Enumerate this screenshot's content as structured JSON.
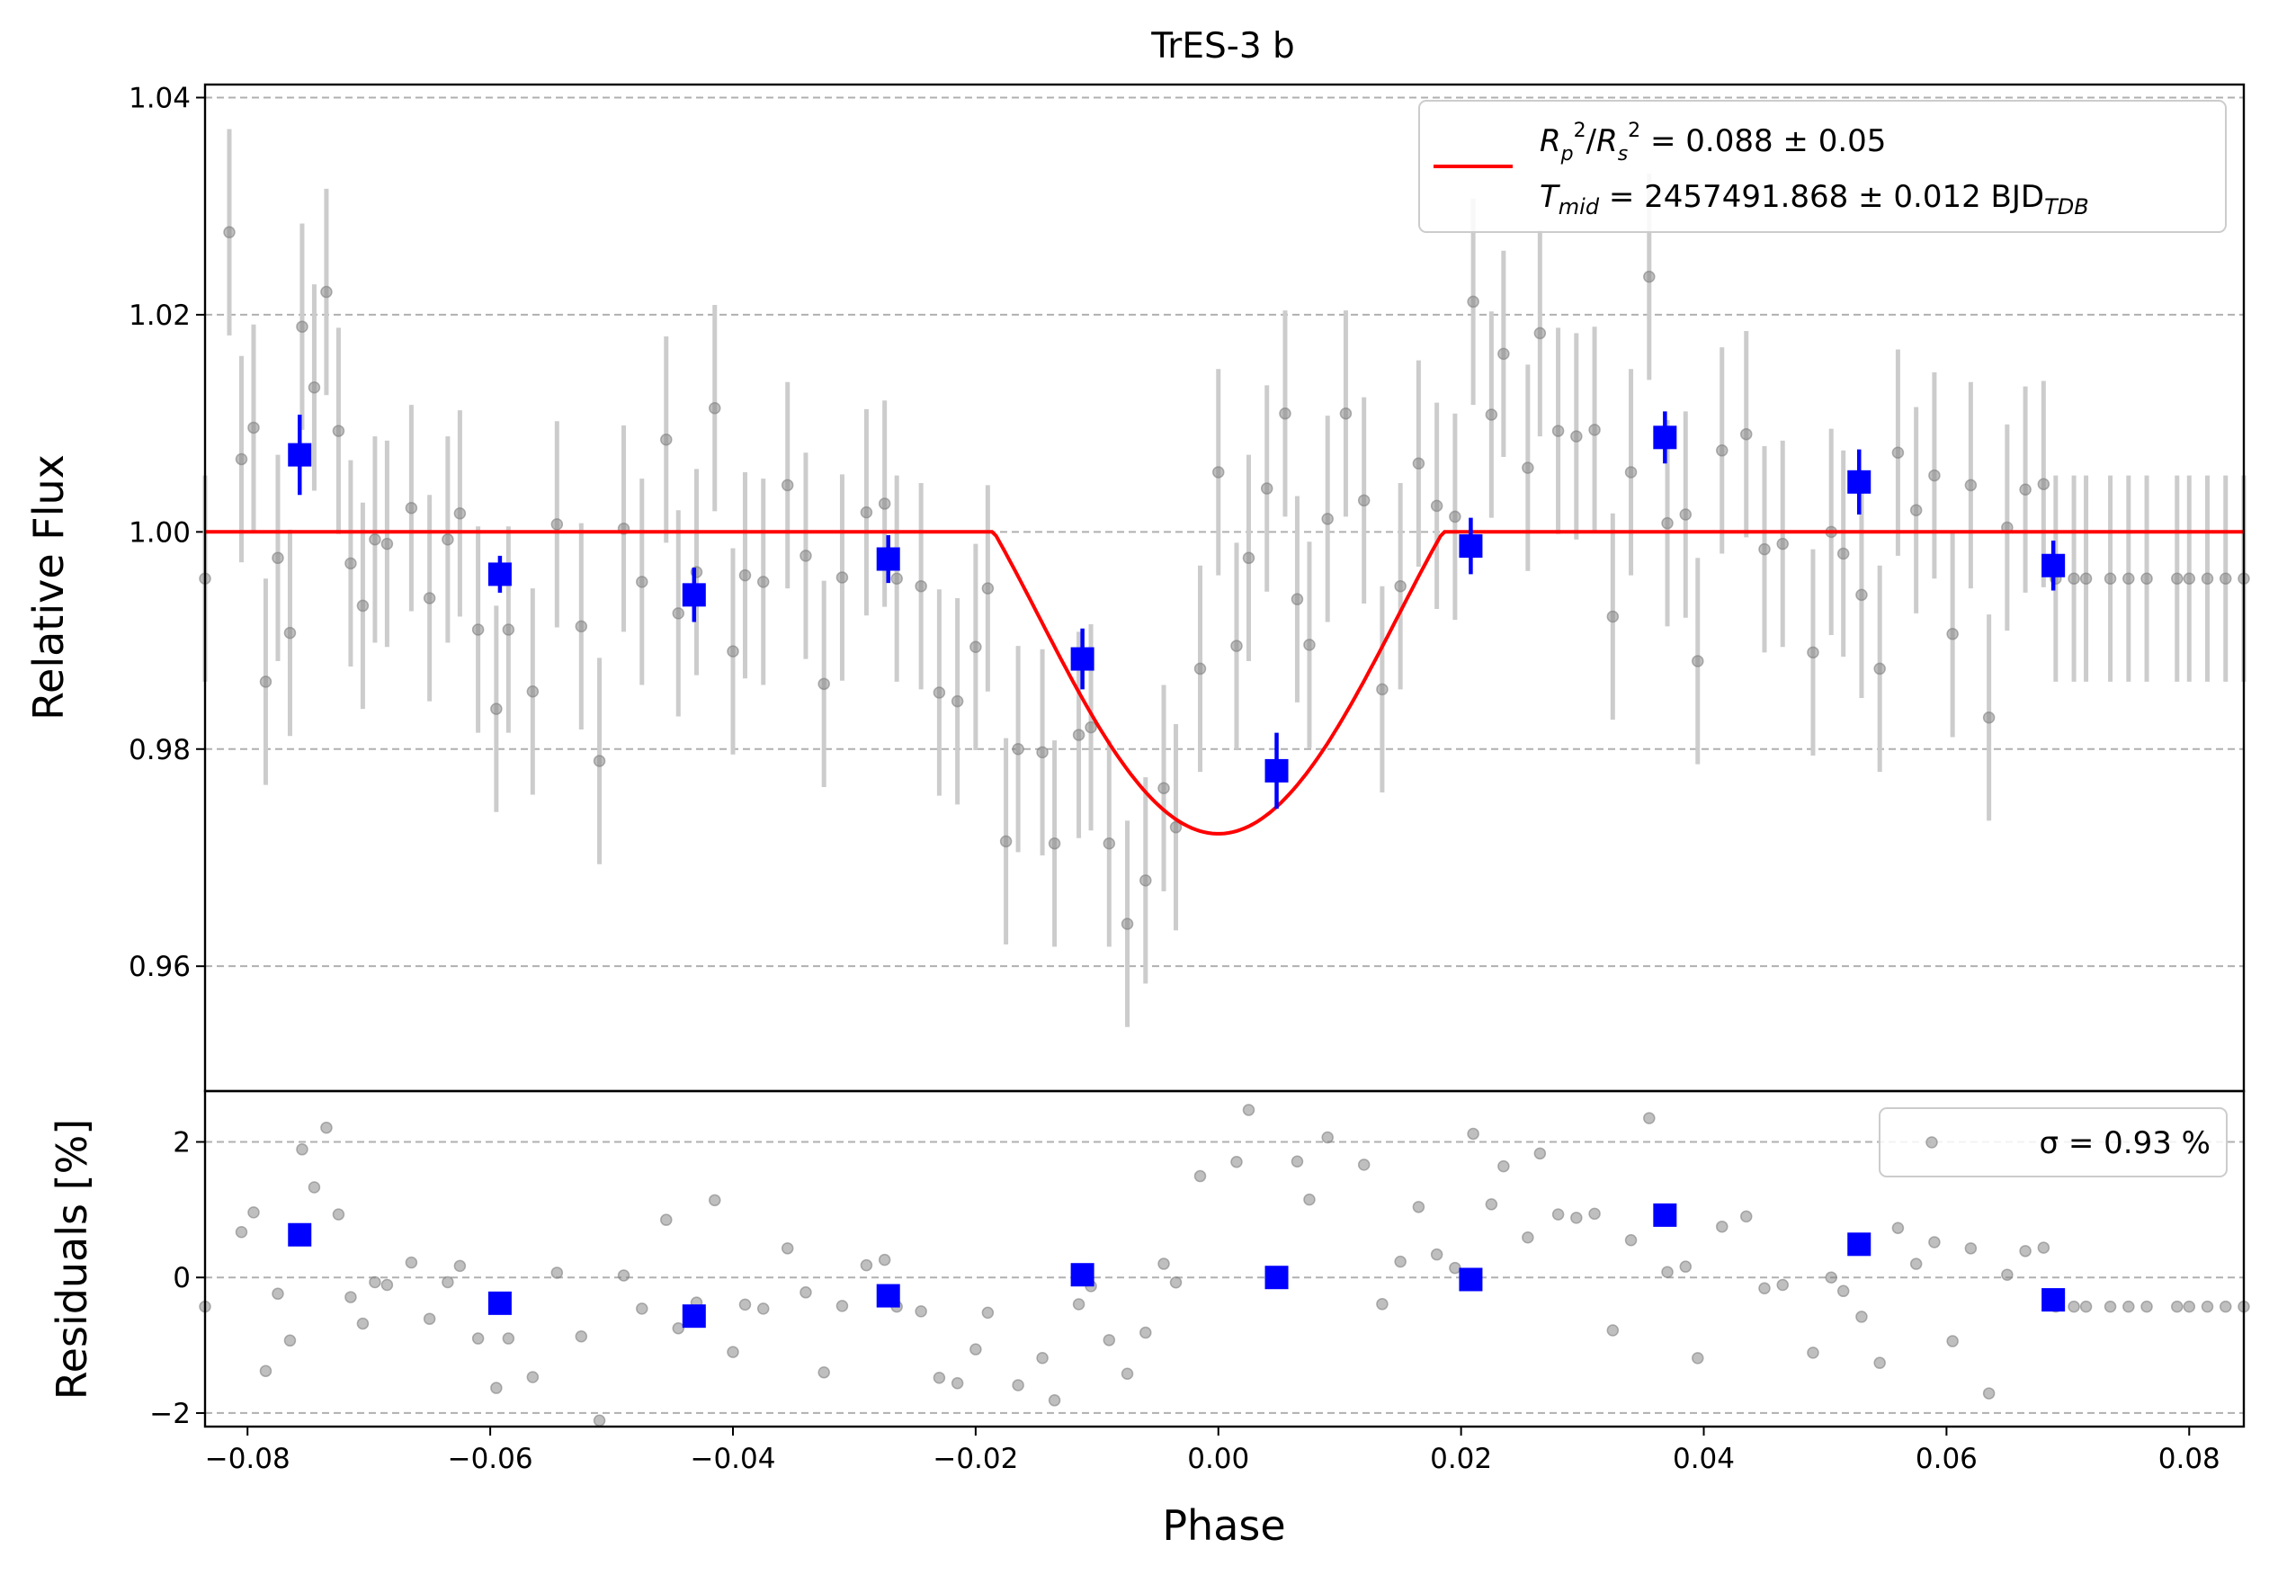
{
  "title": "TrES-3 b",
  "colors": {
    "raw_points": "#808080",
    "raw_errorbars": "#cccccc",
    "binned": "#0000ff",
    "model": "#ff0000",
    "grid": "#b0b0b0"
  },
  "legend_top": {
    "line1": "R_p^2/R_s^2 = 0.088 ± 0.05",
    "line2": "T_mid = 2457491.868 ± 0.012 BJD_TDB"
  },
  "legend_bottom": "σ = 0.93 %",
  "chart_data": [
    {
      "type": "scatter",
      "panel": "light-curve",
      "title": "TrES-3 b",
      "xlabel": "",
      "ylabel": "Relative Flux",
      "xlim": [
        -0.0835,
        0.0845
      ],
      "ylim": [
        0.9485,
        1.0412
      ],
      "yticks": [
        0.96,
        0.98,
        1.0,
        1.02,
        1.04
      ],
      "ytick_labels": [
        "0.96",
        "0.98",
        "1.00",
        "1.02",
        "1.04"
      ],
      "grid": "y-dashed",
      "legend_position": "top-right",
      "model": {
        "label": "R_p^2/R_s^2 = 0.088 ± 0.05  ·  T_mid = 2457491.868 ± 0.012 BJD_TDB",
        "depth": 0.0278,
        "ingress_start": -0.0185,
        "egress_end": 0.0185,
        "baseline": 1.0
      },
      "raw": {
        "x": [
          -0.0835,
          -0.0815,
          -0.0805,
          -0.0795,
          -0.0785,
          -0.0775,
          -0.0765,
          -0.0755,
          -0.0745,
          -0.0735,
          -0.0725,
          -0.0715,
          -0.0705,
          -0.0695,
          -0.0685,
          -0.0665,
          -0.065,
          -0.0635,
          -0.0625,
          -0.061,
          -0.0595,
          -0.0585,
          -0.0565,
          -0.0545,
          -0.0525,
          -0.051,
          -0.049,
          -0.0475,
          -0.0455,
          -0.0445,
          -0.043,
          -0.0415,
          -0.04,
          -0.039,
          -0.0375,
          -0.0355,
          -0.034,
          -0.0325,
          -0.031,
          -0.029,
          -0.0275,
          -0.0265,
          -0.0245,
          -0.023,
          -0.0215,
          -0.02,
          -0.019,
          -0.0175,
          -0.0165,
          -0.0145,
          -0.0135,
          -0.0115,
          -0.0105,
          -0.009,
          -0.0075,
          -0.006,
          -0.0045,
          -0.0035,
          -0.0015,
          0.0,
          0.0015,
          0.0025,
          0.004,
          0.0055,
          0.0065,
          0.0075,
          0.009,
          0.0105,
          0.012,
          0.0135,
          0.015,
          0.0165,
          0.018,
          0.0195,
          0.021,
          0.0225,
          0.0235,
          0.0255,
          0.0265,
          0.028,
          0.0295,
          0.031,
          0.0325,
          0.034,
          0.0355,
          0.037,
          0.0385,
          0.0395,
          0.0415,
          0.0435,
          0.045,
          0.0465,
          0.049,
          0.0505,
          0.0515,
          0.053,
          0.0545,
          0.056,
          0.0575,
          0.059,
          0.0605,
          0.062,
          0.0635,
          0.065,
          0.0665,
          0.068,
          0.069,
          0.0705,
          0.0715,
          0.0735,
          0.075,
          0.0765,
          0.079,
          0.08,
          0.0815,
          0.083,
          0.0845
        ],
        "y": [
          0.9957,
          1.0276,
          1.0067,
          1.0096,
          0.9862,
          0.9976,
          0.9907,
          1.0189,
          1.0133,
          1.0221,
          1.0093,
          0.9971,
          0.9932,
          0.9993,
          0.9989,
          1.0022,
          0.9939,
          0.9993,
          1.0017,
          0.991,
          0.9837,
          0.991,
          0.9853,
          1.0007,
          0.9913,
          0.9789,
          1.0003,
          0.9954,
          1.0085,
          0.9925,
          0.9963,
          1.0114,
          0.989,
          0.996,
          0.9954,
          1.0043,
          0.9978,
          0.986,
          0.9958,
          1.0018,
          1.0026,
          0.9957,
          0.995,
          0.9852,
          0.9844,
          0.9894,
          0.9948,
          0.9715,
          0.98,
          0.9797,
          0.9713,
          0.9813,
          0.982,
          0.9713,
          0.9639,
          0.9679,
          0.9764,
          0.9728,
          0.9874,
          1.0055,
          0.9895,
          0.9976,
          1.004,
          1.0109,
          0.9938,
          0.9896,
          1.0012,
          1.0109,
          1.0029,
          0.9855,
          0.995,
          1.0063,
          1.0024,
          1.0014,
          1.0212,
          1.0108,
          1.0164,
          1.0059,
          1.0183,
          1.0093,
          1.0088,
          1.0094,
          0.9922,
          1.0055,
          1.0235,
          1.0008,
          1.0016,
          0.9881,
          1.0075,
          1.009,
          0.9984,
          0.9989,
          0.9889,
          1.0,
          0.998,
          0.9942,
          0.9874,
          1.0073,
          1.002,
          1.0052,
          0.9906,
          1.0043,
          0.9829,
          1.0004,
          1.0039,
          1.0044,
          0.9957,
          0.9957,
          0.9957,
          0.9957,
          0.9957,
          0.9957,
          0.9957,
          0.9957,
          0.9957,
          0.9957,
          0.9957
        ],
        "yerr": 0.0095
      },
      "binned": {
        "x": [
          -0.0757,
          -0.0592,
          -0.0432,
          -0.0272,
          -0.0112,
          0.0048,
          0.0208,
          0.0368,
          0.0528,
          0.0688
        ],
        "y": [
          1.0071,
          0.9961,
          0.9942,
          0.9975,
          0.9883,
          0.978,
          0.9987,
          1.0087,
          1.0046,
          0.9969
        ],
        "yerr": [
          0.0037,
          0.0017,
          0.0025,
          0.0022,
          0.0028,
          0.0035,
          0.0026,
          0.0024,
          0.003,
          0.0023
        ]
      }
    },
    {
      "type": "scatter",
      "panel": "residuals",
      "xlabel": "Phase",
      "ylabel": "Residuals [%]",
      "xlim": [
        -0.0835,
        0.0845
      ],
      "ylim": [
        -2.2,
        2.75
      ],
      "xticks": [
        -0.08,
        -0.06,
        -0.04,
        -0.02,
        0.0,
        0.02,
        0.04,
        0.06,
        0.08
      ],
      "xtick_labels": [
        "−0.08",
        "−0.06",
        "−0.04",
        "−0.02",
        "0.00",
        "0.02",
        "0.04",
        "0.06",
        "0.08"
      ],
      "yticks": [
        -2,
        0,
        2
      ],
      "ytick_labels": [
        "−2",
        "0",
        "2"
      ],
      "grid": "y-dashed",
      "legend_position": "top-right",
      "binned": {
        "x": [
          -0.0757,
          -0.0592,
          -0.0432,
          -0.0272,
          -0.0112,
          0.0048,
          0.0208,
          0.0368,
          0.0528,
          0.0688
        ],
        "y": [
          0.63,
          -0.38,
          -0.57,
          -0.27,
          0.04,
          0.0,
          -0.03,
          0.92,
          0.49,
          -0.33
        ]
      }
    }
  ]
}
